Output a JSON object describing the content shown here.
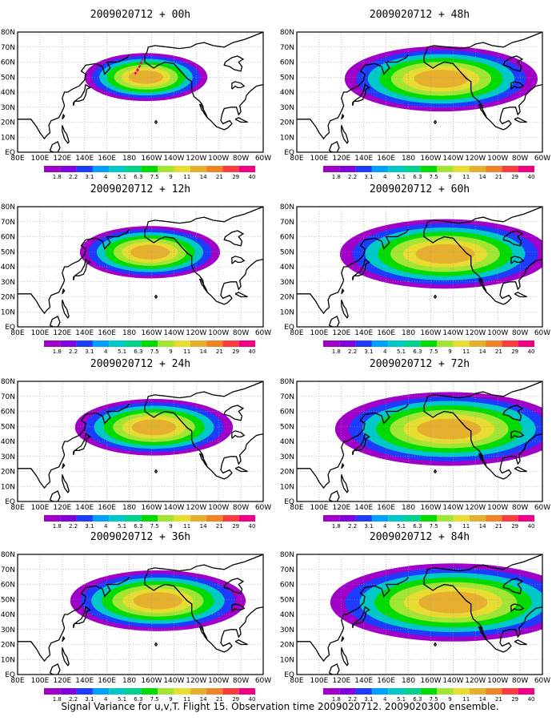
{
  "caption": "Signal Variance for u,v,T. Flight 15. Observation time 2009020712. 2009020300 ensemble.",
  "panels": [
    {
      "title": "2009020712 + 00h",
      "lead": 0
    },
    {
      "title": "2009020712 + 48h",
      "lead": 48
    },
    {
      "title": "2009020712 + 12h",
      "lead": 12
    },
    {
      "title": "2009020712 + 60h",
      "lead": 60
    },
    {
      "title": "2009020712 + 24h",
      "lead": 24
    },
    {
      "title": "2009020712 + 72h",
      "lead": 72
    },
    {
      "title": "2009020712 + 36h",
      "lead": 36
    },
    {
      "title": "2009020712 + 84h",
      "lead": 84
    }
  ],
  "lon_labels": [
    "80E",
    "100E",
    "120E",
    "140E",
    "160E",
    "180",
    "160W",
    "140W",
    "120W",
    "100W",
    "80W",
    "60W"
  ],
  "lat_labels": [
    "80N",
    "70N",
    "60N",
    "50N",
    "40N",
    "30N",
    "20N",
    "10N",
    "EQ"
  ],
  "colorbar": {
    "labels": [
      "1.8",
      "2.2",
      "3.1",
      "4",
      "5.1",
      "6.3",
      "7.5",
      "9",
      "11",
      "14",
      "21",
      "29",
      "40"
    ],
    "colors": [
      "#a000c8",
      "#8200dc",
      "#1e3cff",
      "#00a0ff",
      "#00c8c8",
      "#00d28c",
      "#00dc00",
      "#a0e632",
      "#e6dc32",
      "#e6af2d",
      "#f08228",
      "#fa3c3c",
      "#f00082"
    ]
  }
}
